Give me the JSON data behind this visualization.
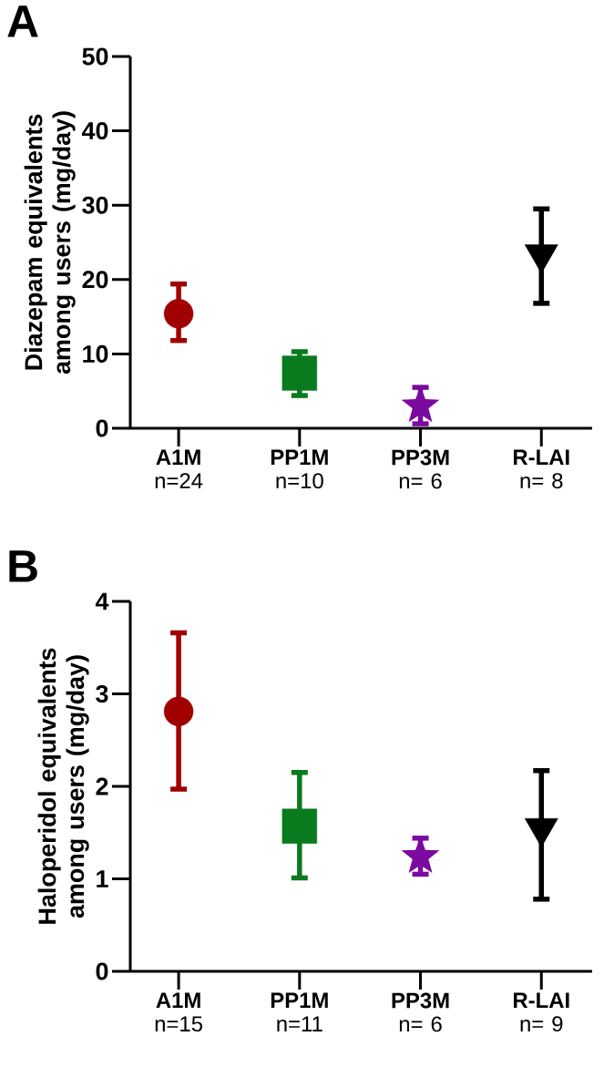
{
  "chart_data": [
    {
      "type": "scatter",
      "title": "A",
      "ylabel": "Diazepam equivalents among users (mg/day)",
      "categories": [
        "**A1M** n=24",
        "**PP1M** n=10",
        "**PP3M** n= 6",
        "**R-LAI** n= 8"
      ],
      "ylim": [
        0,
        50
      ],
      "yticks": [
        0,
        10,
        20,
        30,
        40,
        50
      ],
      "series": [
        {
          "color": "#a00000",
          "marker": "circle",
          "values": [
            15.4,
            null,
            null,
            null
          ],
          "errors": [
            [
              11.8,
              19.4
            ],
            null,
            null,
            null
          ]
        },
        {
          "color": "#0a7a1e",
          "marker": "square",
          "values": [
            null,
            7.4,
            null,
            null
          ],
          "errors": [
            null,
            [
              4.4,
              10.3
            ],
            null,
            null
          ]
        },
        {
          "color": "#7a0aa0",
          "marker": "star",
          "values": [
            null,
            null,
            3.0,
            null
          ],
          "errors": [
            null,
            null,
            [
              0.6,
              5.5
            ],
            null
          ]
        },
        {
          "color": "#000000",
          "marker": "triangle",
          "values": [
            null,
            null,
            null,
            23.4
          ],
          "errors": [
            null,
            null,
            null,
            [
              16.8,
              29.5
            ]
          ]
        }
      ]
    },
    {
      "type": "scatter",
      "title": "B",
      "ylabel": "Haloperidol equivalents among users (mg/day)",
      "categories": [
        "**A1M** n=15",
        "**PP1M** n=11",
        "**PP3M** n= 6",
        "**R-LAI** n= 9"
      ],
      "ylim": [
        0,
        4
      ],
      "yticks": [
        0,
        1,
        2,
        3,
        4
      ],
      "series": [
        {
          "color": "#a00000",
          "marker": "circle",
          "values": [
            2.81,
            null,
            null,
            null
          ],
          "errors": [
            [
              1.97,
              3.66
            ],
            null,
            null,
            null
          ]
        },
        {
          "color": "#0a7a1e",
          "marker": "square",
          "values": [
            null,
            1.57,
            null,
            null
          ],
          "errors": [
            null,
            [
              1.01,
              2.15
            ],
            null,
            null
          ]
        },
        {
          "color": "#7a0aa0",
          "marker": "star",
          "values": [
            null,
            null,
            1.24,
            null
          ],
          "errors": [
            null,
            null,
            [
              1.05,
              1.44
            ],
            null
          ]
        },
        {
          "color": "#000000",
          "marker": "triangle",
          "values": [
            null,
            null,
            null,
            1.55
          ],
          "errors": [
            null,
            null,
            null,
            [
              0.78,
              2.17
            ]
          ]
        }
      ]
    }
  ]
}
